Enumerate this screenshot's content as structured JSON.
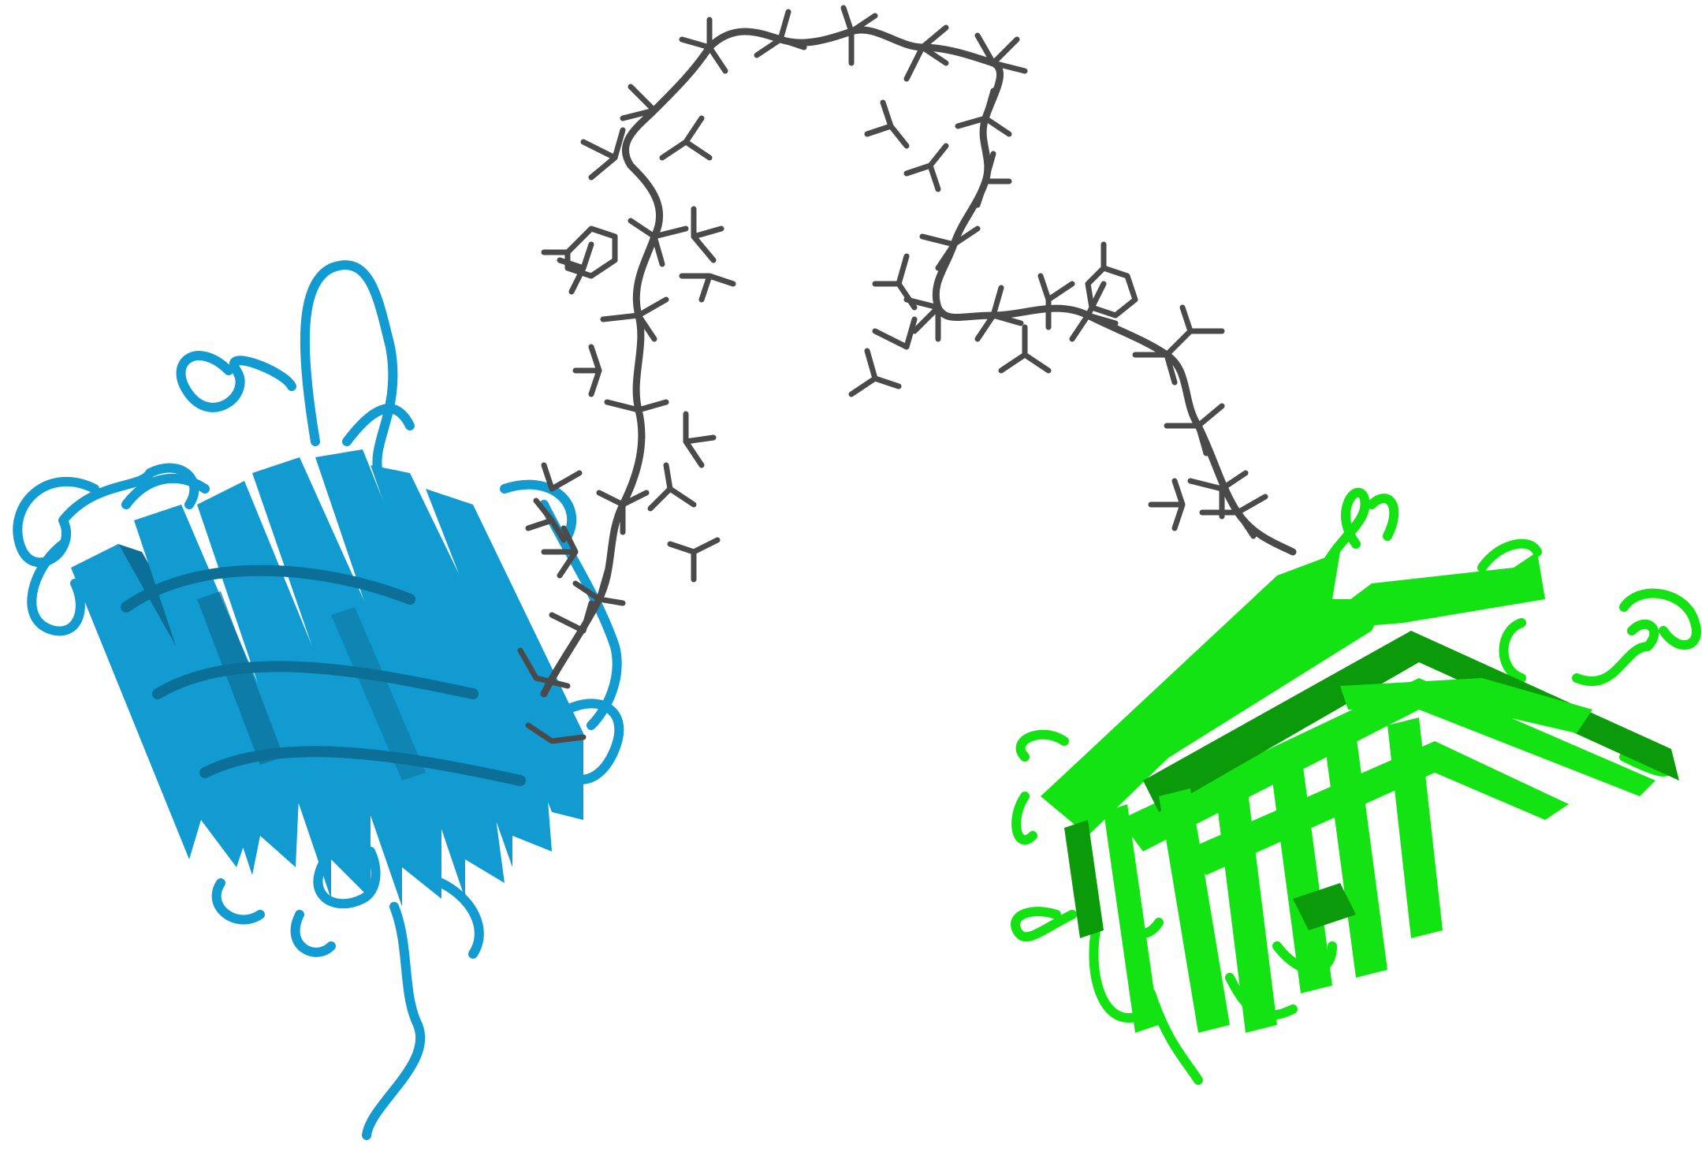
{
  "scene": {
    "background": "#ffffff",
    "structures": [
      {
        "kind": "beta-barrel-ribbon",
        "color": "#129bd0",
        "dark": "#0b6f97"
      },
      {
        "kind": "linker-stick-model",
        "color": "#4a4a4a"
      },
      {
        "kind": "beta-barrel-ribbon",
        "color": "#13e313",
        "dark": "#0a9a0a"
      }
    ]
  }
}
